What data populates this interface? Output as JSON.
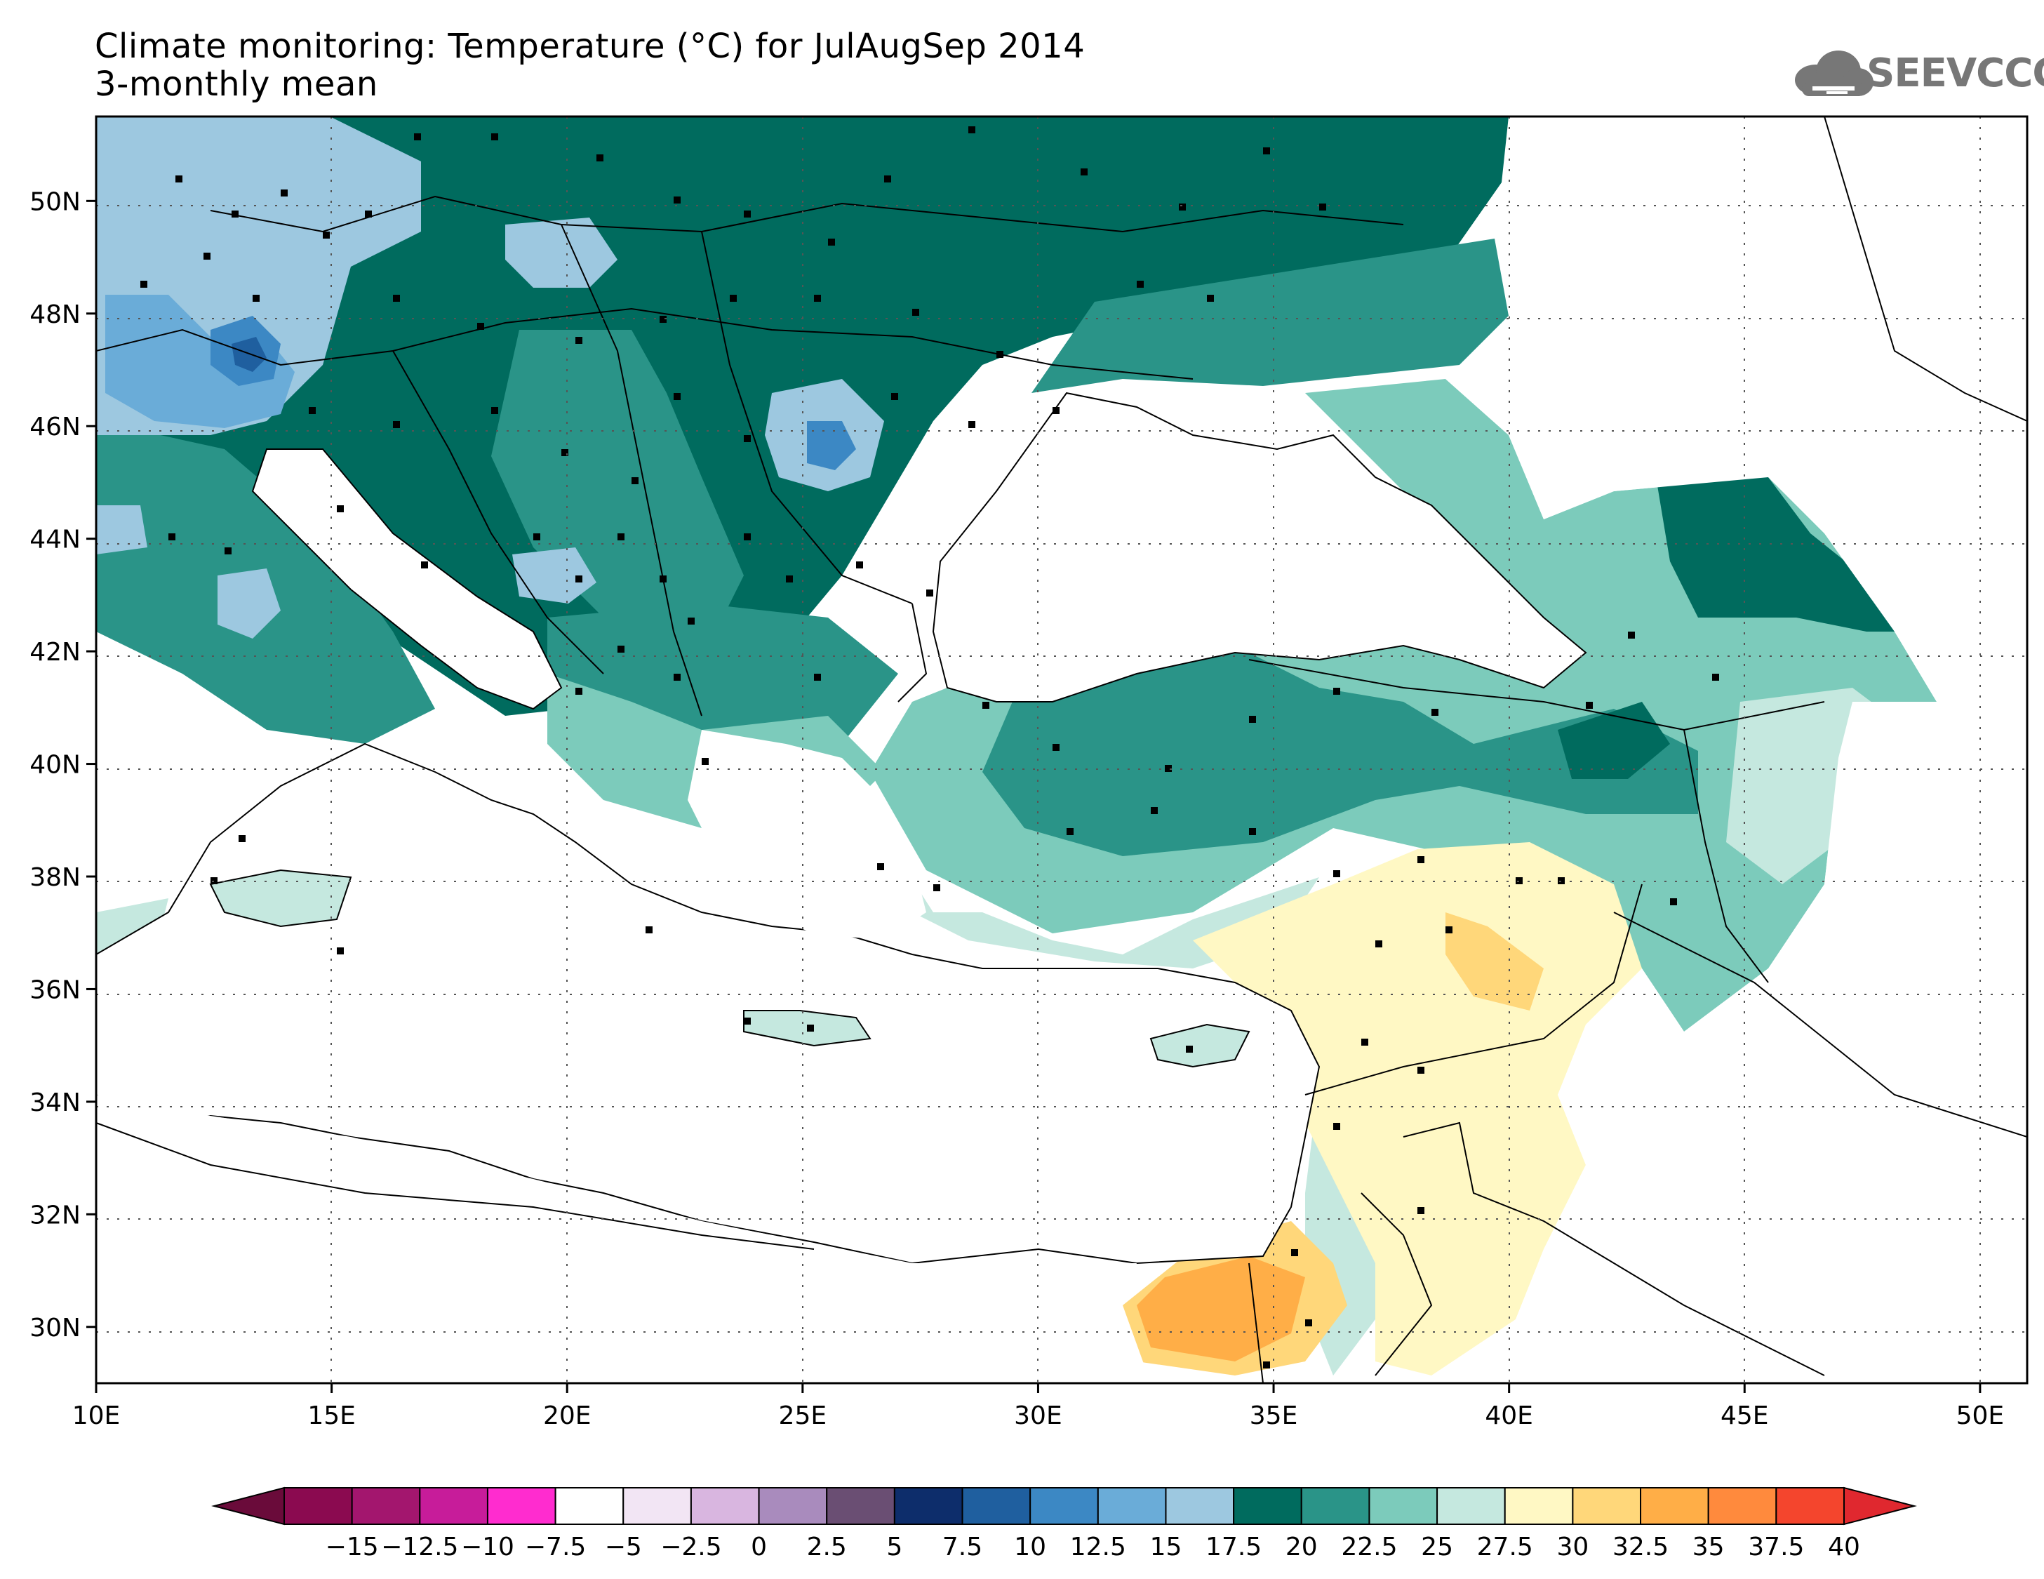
{
  "header": {
    "title": "Climate monitoring: Temperature (°C) for JulAugSep 2014",
    "subtitle": "3-monthly mean",
    "logo_text": "SEEVCCC"
  },
  "map": {
    "lon_range": [
      10,
      51
    ],
    "lat_range": [
      29,
      51.5
    ],
    "lon_ticks": [
      "10E",
      "15E",
      "20E",
      "25E",
      "30E",
      "35E",
      "40E",
      "45E",
      "50E"
    ],
    "lat_ticks": [
      "30N",
      "32N",
      "34N",
      "36N",
      "38N",
      "40N",
      "42N",
      "44N",
      "46N",
      "48N",
      "50N"
    ]
  },
  "colorbar": {
    "labels": [
      "−15",
      "−12.5",
      "−10",
      "−7.5",
      "−5",
      "−2.5",
      "0",
      "2.5",
      "5",
      "7.5",
      "10",
      "12.5",
      "15",
      "17.5",
      "20",
      "22.5",
      "25",
      "27.5",
      "30",
      "32.5",
      "35",
      "37.5",
      "40"
    ],
    "colors": [
      "#8b0a50",
      "#a3166e",
      "#c71c9a",
      "#ff2ccf",
      "#ffffff",
      "#f2e5f4",
      "#d9b6e0",
      "#a98bbd",
      "#6a4e73",
      "#0d2d6b",
      "#1f5f9f",
      "#3c88c4",
      "#6aacd8",
      "#9dc8e0",
      "#006b5e",
      "#2a9488",
      "#7ccbbb",
      "#c5e8df",
      "#fff8c4",
      "#ffd77a",
      "#ffae47",
      "#ff8a3d",
      "#f4452d"
    ],
    "under_color": "#6a0b3a",
    "over_color": "#e0282f"
  }
}
